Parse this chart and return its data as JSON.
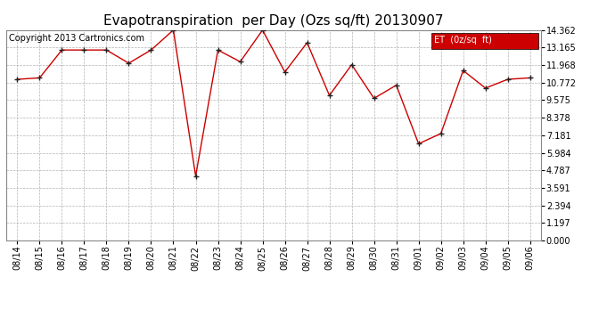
{
  "title": "Evapotranspiration  per Day (Ozs sq/ft) 20130907",
  "copyright_text": "Copyright 2013 Cartronics.com",
  "legend_label": "ET  (0z/sq  ft)",
  "x_labels": [
    "08/14",
    "08/15",
    "08/16",
    "08/17",
    "08/18",
    "08/19",
    "08/20",
    "08/21",
    "08/22",
    "08/23",
    "08/24",
    "08/25",
    "08/26",
    "08/27",
    "08/28",
    "08/29",
    "08/30",
    "08/31",
    "09/01",
    "09/02",
    "09/03",
    "09/04",
    "09/05",
    "09/06"
  ],
  "y_values": [
    11.0,
    11.1,
    13.0,
    13.0,
    13.0,
    12.1,
    13.0,
    14.362,
    4.4,
    13.0,
    12.2,
    14.362,
    11.5,
    13.5,
    9.9,
    12.0,
    9.7,
    10.6,
    6.6,
    7.3,
    11.6,
    10.4,
    11.0,
    11.1
  ],
  "ylim": [
    0,
    14.362
  ],
  "yticks": [
    0.0,
    1.197,
    2.394,
    3.591,
    4.787,
    5.984,
    7.181,
    8.378,
    9.575,
    10.772,
    11.968,
    13.165,
    14.362
  ],
  "line_color": "#cc0000",
  "marker_color": "#222222",
  "bg_color": "#ffffff",
  "grid_color": "#aaaaaa",
  "legend_bg": "#cc0000",
  "legend_text_color": "#ffffff",
  "title_fontsize": 11,
  "copyright_fontsize": 7,
  "tick_fontsize": 7,
  "border_color": "#888888"
}
